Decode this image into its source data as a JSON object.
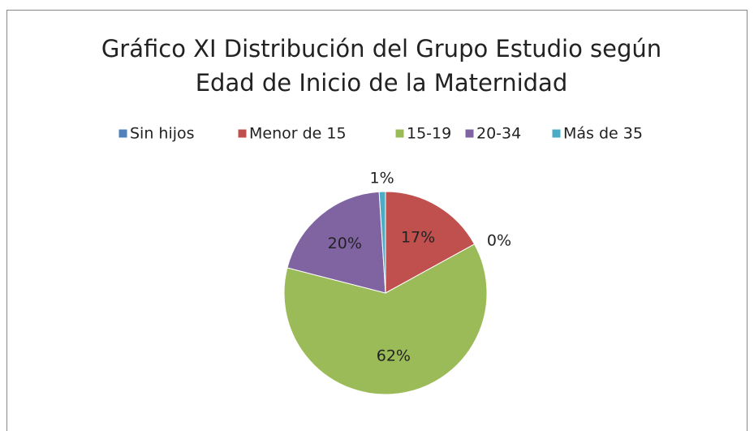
{
  "chart_data": {
    "type": "pie",
    "title": [
      "Gráfico XI Distribución del Grupo Estudio según",
      "Edad de Inicio de la Maternidad"
    ],
    "categories": [
      "Sin hijos",
      "Menor de 15",
      "15-19",
      "20-34",
      "Más de 35"
    ],
    "values": [
      0,
      17,
      62,
      20,
      1
    ],
    "value_labels": [
      "0%",
      "17%",
      "62%",
      "20%",
      "1%"
    ],
    "colors": [
      "#4f81bd",
      "#c0504d",
      "#9bbb59",
      "#8064a2",
      "#4bacc6"
    ],
    "legend": "top"
  }
}
